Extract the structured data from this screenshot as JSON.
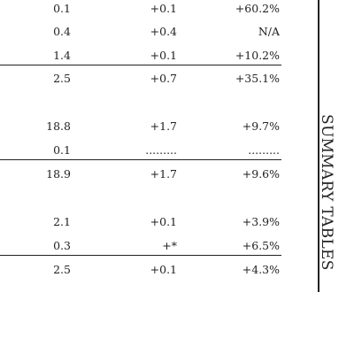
{
  "side_title": "SUMMARY TABLES",
  "rows": [
    {
      "value": "0.1",
      "change": "+0.1",
      "percent": "+60.2%"
    },
    {
      "value": "0.4",
      "change": "+0.4",
      "percent": "N/A"
    },
    {
      "value": "1.4",
      "change": "+0.1",
      "percent": "+10.2%"
    },
    {
      "value": "2.5",
      "change": "+0.7",
      "percent": "+35.1%"
    },
    {
      "value": "18.8",
      "change": "+1.7",
      "percent": "+9.7%"
    },
    {
      "value": "0.1",
      "change": ".........",
      "percent": "........."
    },
    {
      "value": "18.9",
      "change": "+1.7",
      "percent": "+9.6%"
    },
    {
      "value": "2.1",
      "change": "+0.1",
      "percent": "+3.9%"
    },
    {
      "value": "0.3",
      "change": "+*",
      "percent": "+6.5%"
    },
    {
      "value": "2.5",
      "change": "+0.1",
      "percent": "+4.3%"
    }
  ]
}
